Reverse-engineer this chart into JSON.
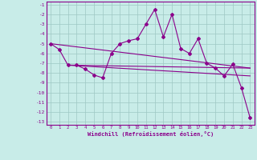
{
  "xlabel": "Windchill (Refroidissement éolien,°C)",
  "bg_color": "#c8ece8",
  "grid_color": "#9ec8c4",
  "line_color": "#8b008b",
  "xlim": [
    -0.5,
    23.5
  ],
  "ylim": [
    -13.3,
    -0.7
  ],
  "xticks": [
    0,
    1,
    2,
    3,
    4,
    5,
    6,
    7,
    8,
    9,
    10,
    11,
    12,
    13,
    14,
    15,
    16,
    17,
    18,
    19,
    20,
    21,
    22,
    23
  ],
  "yticks": [
    -1,
    -2,
    -3,
    -4,
    -5,
    -6,
    -7,
    -8,
    -9,
    -10,
    -11,
    -12,
    -13
  ],
  "data_x": [
    0,
    1,
    2,
    3,
    4,
    5,
    6,
    7,
    8,
    9,
    10,
    11,
    12,
    13,
    14,
    15,
    16,
    17,
    18,
    19,
    20,
    21,
    22,
    23
  ],
  "data_y": [
    -5.0,
    -5.6,
    -7.2,
    -7.2,
    -7.6,
    -8.2,
    -8.5,
    -6.0,
    -5.0,
    -4.7,
    -4.5,
    -3.0,
    -1.5,
    -4.3,
    -2.0,
    -5.5,
    -6.0,
    -4.5,
    -7.0,
    -7.5,
    -8.3,
    -7.1,
    -9.5,
    -12.6
  ],
  "line1_x": [
    0,
    23
  ],
  "line1_y": [
    -5.0,
    -7.5
  ],
  "line2_x": [
    2,
    23
  ],
  "line2_y": [
    -7.2,
    -7.5
  ],
  "line3_x": [
    2,
    23
  ],
  "line3_y": [
    -7.2,
    -8.3
  ]
}
